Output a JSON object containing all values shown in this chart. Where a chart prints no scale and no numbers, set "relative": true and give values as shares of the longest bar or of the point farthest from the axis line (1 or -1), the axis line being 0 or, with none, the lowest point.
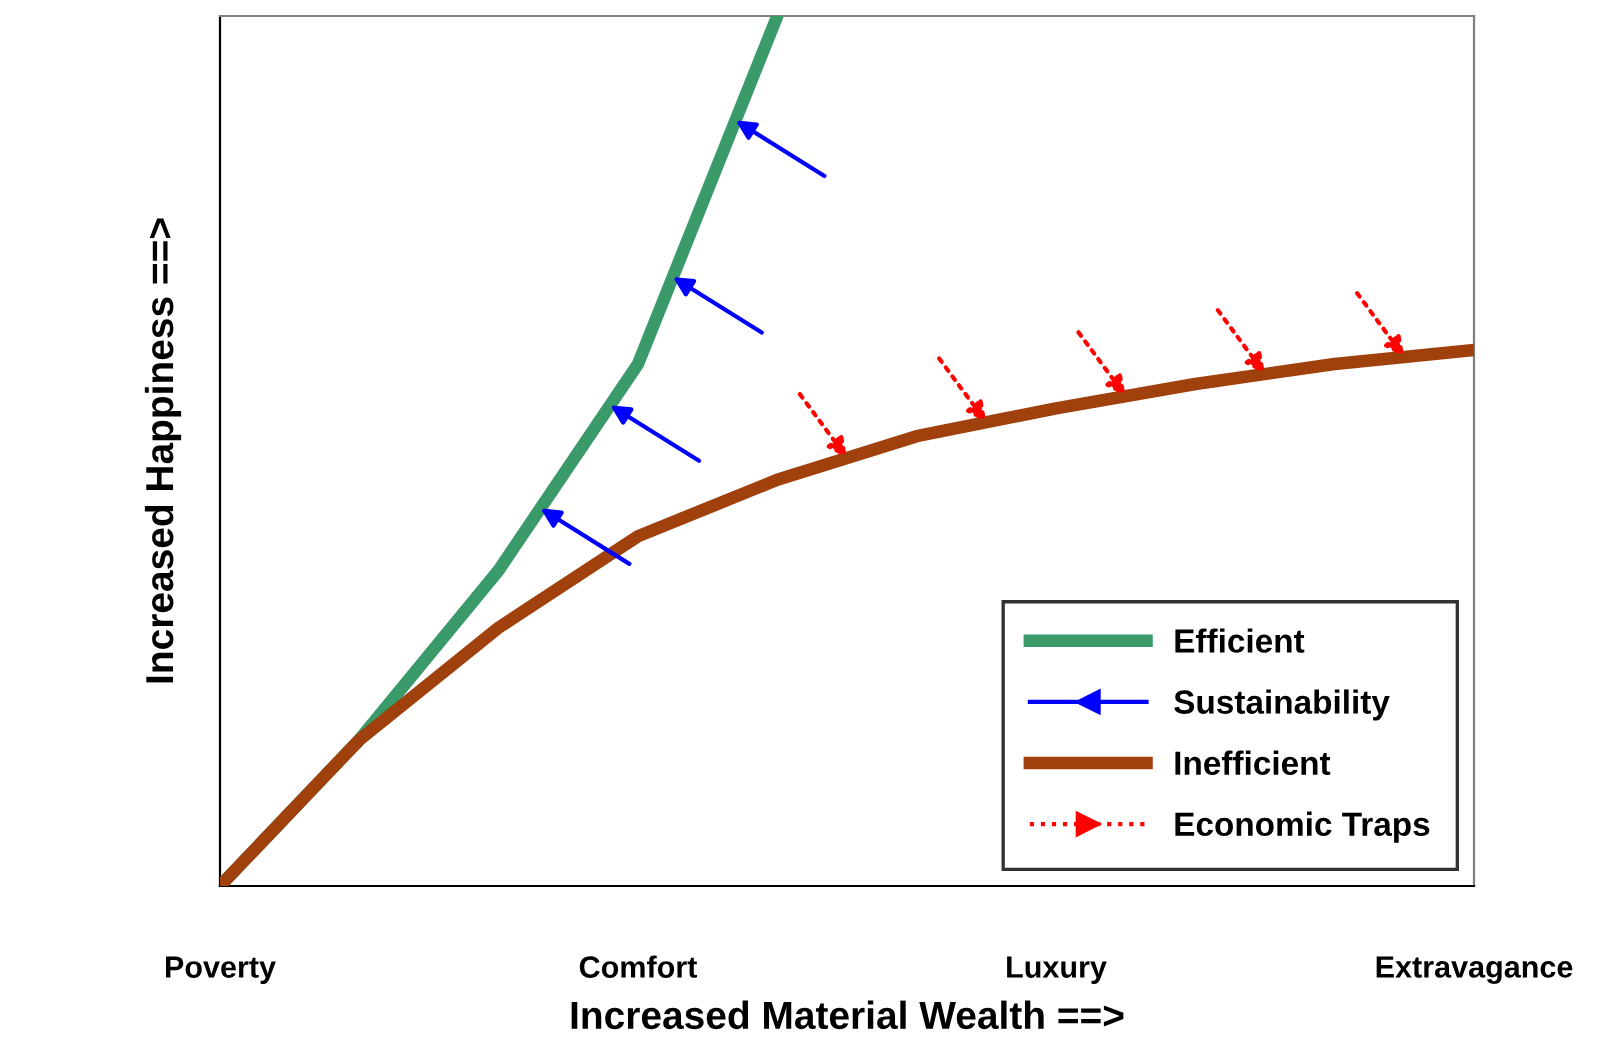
{
  "chart_data": {
    "type": "line",
    "relative": true,
    "xlabel": "Increased Material Wealth ==>",
    "ylabel": "Increased Happiness ==>",
    "categories": [
      "Poverty",
      null,
      null,
      null,
      null,
      null,
      "Comfort",
      null,
      null,
      null,
      null,
      null,
      "Luxury",
      null,
      null,
      null,
      null,
      null,
      "Extravagance"
    ],
    "legend": "bottom right",
    "marker": "none",
    "series": [
      {
        "name": "Efficient",
        "color": "#3a9a6a",
        "values": [
          0,
          null,
          0.168,
          null,
          0.363,
          null,
          0.6,
          null,
          1.0,
          null,
          null,
          null,
          null,
          null,
          null,
          null,
          null,
          null,
          null
        ]
      },
      {
        "name": "Sustainability",
        "type": "other",
        "color": "#0000ff",
        "line_style": "solid",
        "values": [
          null,
          null,
          null,
          null,
          null,
          null,
          null,
          null,
          null,
          null,
          null,
          null,
          null,
          null,
          null,
          null,
          null,
          null,
          null
        ]
      },
      {
        "name": "Inefficient",
        "color": "#a0410d",
        "values": [
          0,
          null,
          0.168,
          null,
          0.297,
          null,
          0.402,
          null,
          0.467,
          null,
          0.517,
          null,
          0.549,
          null,
          0.577,
          null,
          0.6,
          null,
          0.616
        ]
      },
      {
        "name": "Economic Traps",
        "type": "other",
        "color": "#ff0000",
        "line_style": "dotted",
        "values": [
          null,
          null,
          null,
          null,
          null,
          null,
          null,
          null,
          null,
          null,
          null,
          null,
          null,
          null,
          null,
          null,
          null,
          null,
          null
        ]
      }
    ]
  }
}
